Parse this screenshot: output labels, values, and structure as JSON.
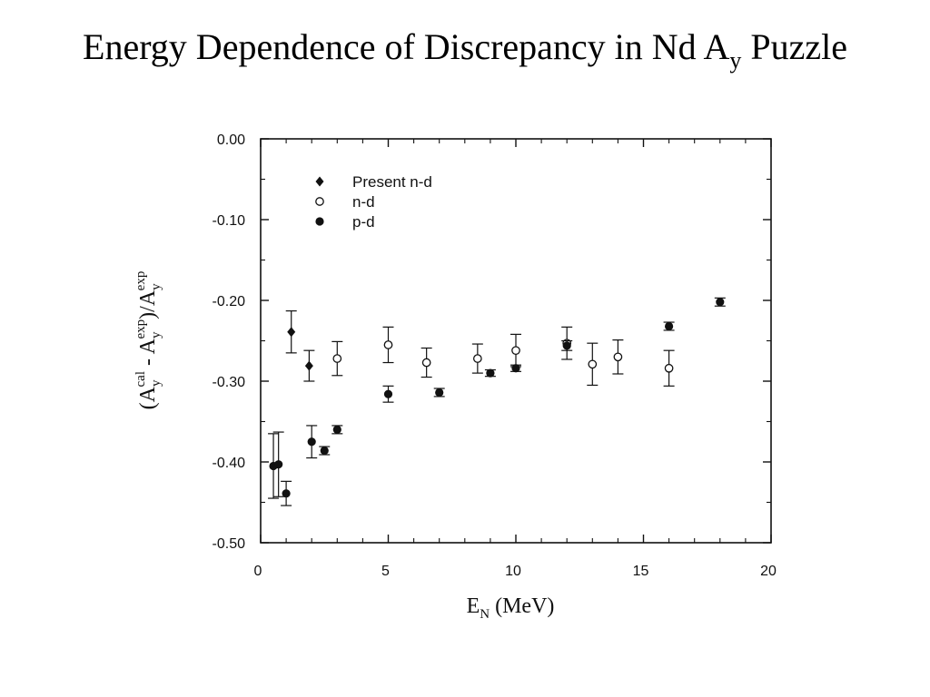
{
  "title": {
    "main": "Energy Dependence of Discrepancy in Nd A",
    "sub": "y",
    "tail": " Puzzle"
  },
  "chart_data": {
    "type": "scatter",
    "xlabel": {
      "base": "E",
      "sub": "N",
      "tail": " (MeV)"
    },
    "ylabel": {
      "p1": "(A",
      "sub1": "y",
      "sup1": "cal",
      "p2": " - A",
      "sub2": "y",
      "sup2": "exp",
      "p3": ")/A",
      "sub3": "y",
      "sup3": "exp"
    },
    "xlim": [
      0,
      20
    ],
    "ylim": [
      -0.5,
      0.0
    ],
    "xticks": [
      0,
      5,
      10,
      15,
      20
    ],
    "xtick_labels": [
      "0",
      "5",
      "10",
      "15",
      "20"
    ],
    "yticks": [
      0.0,
      -0.1,
      -0.2,
      -0.3,
      -0.4,
      -0.5
    ],
    "ytick_labels": [
      "0.00",
      "-0.10",
      "-0.20",
      "-0.30",
      "-0.40",
      "-0.50"
    ],
    "grid": false,
    "legend": "top-left",
    "series": [
      {
        "name": "Present n-d",
        "marker": "diamond",
        "points": [
          {
            "x": 1.2,
            "y": -0.239,
            "err": 0.026
          },
          {
            "x": 1.9,
            "y": -0.281,
            "err": 0.019
          }
        ]
      },
      {
        "name": "n-d",
        "marker": "open-circle",
        "points": [
          {
            "x": 3.0,
            "y": -0.272,
            "err": 0.021
          },
          {
            "x": 5.0,
            "y": -0.255,
            "err": 0.022
          },
          {
            "x": 6.5,
            "y": -0.277,
            "err": 0.018
          },
          {
            "x": 8.5,
            "y": -0.272,
            "err": 0.018
          },
          {
            "x": 10.0,
            "y": -0.262,
            "err": 0.02
          },
          {
            "x": 12.0,
            "y": -0.253,
            "err": 0.02
          },
          {
            "x": 13.0,
            "y": -0.279,
            "err": 0.026
          },
          {
            "x": 14.0,
            "y": -0.27,
            "err": 0.021
          },
          {
            "x": 16.0,
            "y": -0.284,
            "err": 0.022
          }
        ]
      },
      {
        "name": "p-d",
        "marker": "filled-circle",
        "points": [
          {
            "x": 0.5,
            "y": -0.405,
            "err": 0.04
          },
          {
            "x": 0.7,
            "y": -0.403,
            "err": 0.04
          },
          {
            "x": 1.0,
            "y": -0.439,
            "err": 0.015
          },
          {
            "x": 2.0,
            "y": -0.375,
            "err": 0.02
          },
          {
            "x": 2.5,
            "y": -0.386,
            "err": 0.005
          },
          {
            "x": 3.0,
            "y": -0.36,
            "err": 0.005
          },
          {
            "x": 5.0,
            "y": -0.316,
            "err": 0.01
          },
          {
            "x": 7.0,
            "y": -0.314,
            "err": 0.005
          },
          {
            "x": 9.0,
            "y": -0.29,
            "err": 0.004
          },
          {
            "x": 10.0,
            "y": -0.284,
            "err": 0.004
          },
          {
            "x": 12.0,
            "y": -0.256,
            "err": 0.006
          },
          {
            "x": 16.0,
            "y": -0.232,
            "err": 0.005
          },
          {
            "x": 18.0,
            "y": -0.202,
            "err": 0.005
          }
        ]
      }
    ],
    "colors": {
      "ink": "#111111",
      "background": "#ffffff"
    }
  }
}
